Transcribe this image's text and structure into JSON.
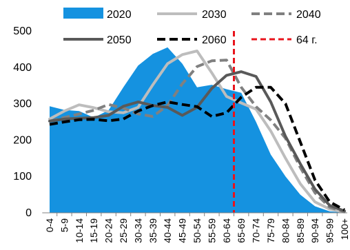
{
  "chart_data": {
    "type": "area",
    "categories": [
      "0-4",
      "5-9",
      "10-14",
      "15-19",
      "20-24",
      "25-29",
      "30-34",
      "35-39",
      "40-44",
      "45-49",
      "50-54",
      "55-59",
      "60-64",
      "65-69",
      "70-74",
      "75-79",
      "80-84",
      "85-89",
      "90-94",
      "95-99",
      "100+"
    ],
    "ylim": [
      0,
      500
    ],
    "yticks": [
      0,
      100,
      200,
      300,
      400,
      500
    ],
    "grid": false,
    "legend_position": "top",
    "series": [
      {
        "name": "2020",
        "kind": "area",
        "color": "#1592e0",
        "values": [
          293,
          283,
          280,
          262,
          282,
          345,
          405,
          437,
          455,
          410,
          345,
          352,
          340,
          330,
          250,
          160,
          100,
          50,
          18,
          4,
          1
        ]
      },
      {
        "name": "2030",
        "kind": "line",
        "style": "solid",
        "color": "#bdbdbd",
        "values": [
          258,
          280,
          297,
          289,
          278,
          275,
          290,
          352,
          410,
          435,
          445,
          385,
          320,
          302,
          285,
          225,
          150,
          80,
          30,
          10,
          2
        ]
      },
      {
        "name": "2040",
        "kind": "line",
        "style": "dashed",
        "color": "#808080",
        "values": [
          252,
          262,
          272,
          282,
          298,
          288,
          272,
          265,
          295,
          355,
          402,
          418,
          420,
          345,
          292,
          255,
          205,
          125,
          55,
          15,
          3
        ]
      },
      {
        "name": "2050",
        "kind": "line",
        "style": "solid",
        "color": "#595959",
        "values": [
          252,
          258,
          260,
          262,
          268,
          293,
          305,
          295,
          290,
          268,
          290,
          342,
          378,
          388,
          375,
          305,
          210,
          135,
          65,
          20,
          5
        ]
      },
      {
        "name": "2060",
        "kind": "line",
        "style": "dashed",
        "color": "#000000",
        "values": [
          243,
          250,
          256,
          257,
          253,
          258,
          280,
          295,
          305,
          298,
          292,
          265,
          275,
          318,
          345,
          345,
          300,
          195,
          90,
          30,
          8
        ]
      }
    ],
    "marker": {
      "label": "64 г.",
      "position": 12.5,
      "color": "#e8141c",
      "style": "dashed"
    }
  }
}
